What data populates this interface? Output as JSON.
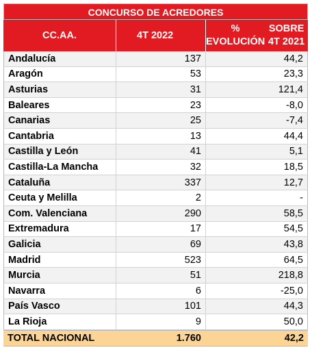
{
  "table": {
    "title": "CONCURSO DE ACREDORES",
    "headers": {
      "col1": "CC.AA.",
      "col2": "4T 2022",
      "col3_line1": "% EVOLUCIÓN",
      "col3_line2": "SOBRE 4T 2021"
    },
    "rows": [
      {
        "region": "Andalucía",
        "value": "137",
        "change": "44,2"
      },
      {
        "region": "Aragón",
        "value": "53",
        "change": "23,3"
      },
      {
        "region": "Asturias",
        "value": "31",
        "change": "121,4"
      },
      {
        "region": "Baleares",
        "value": "23",
        "change": "-8,0"
      },
      {
        "region": "Canarias",
        "value": "25",
        "change": "-7,4"
      },
      {
        "region": "Cantabria",
        "value": "13",
        "change": "44,4"
      },
      {
        "region": "Castilla y León",
        "value": "41",
        "change": "5,1"
      },
      {
        "region": "Castilla-La Mancha",
        "value": "32",
        "change": "18,5"
      },
      {
        "region": "Cataluña",
        "value": "337",
        "change": "12,7"
      },
      {
        "region": "Ceuta y Melilla",
        "value": "2",
        "change": "-"
      },
      {
        "region": "Com. Valenciana",
        "value": "290",
        "change": "58,5"
      },
      {
        "region": "Extremadura",
        "value": "17",
        "change": "54,5"
      },
      {
        "region": "Galicia",
        "value": "69",
        "change": "43,8"
      },
      {
        "region": "Madrid",
        "value": "523",
        "change": "64,5"
      },
      {
        "region": "Murcia",
        "value": "51",
        "change": "218,8"
      },
      {
        "region": "Navarra",
        "value": "6",
        "change": "-25,0"
      },
      {
        "region": "País Vasco",
        "value": "101",
        "change": "44,3"
      },
      {
        "region": "La Rioja",
        "value": "9",
        "change": "50,0"
      }
    ],
    "total": {
      "label": "TOTAL NACIONAL",
      "value": "1.760",
      "change": "42,2"
    }
  }
}
